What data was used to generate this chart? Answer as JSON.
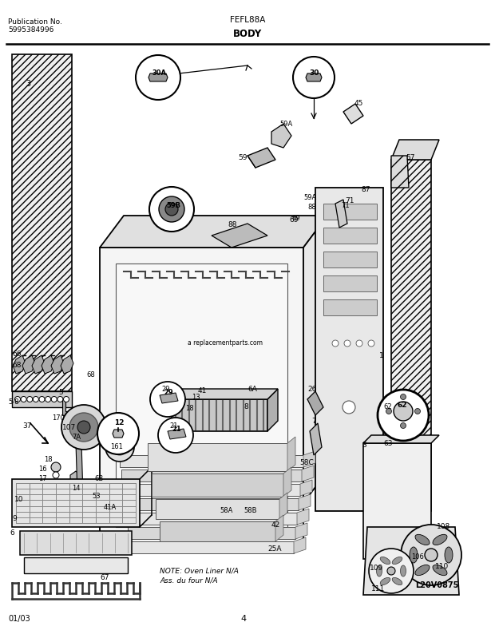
{
  "title": "FEFL88A",
  "subtitle": "BODY",
  "pub_no_label": "Publication No.",
  "pub_no": "5995384996",
  "page_num": "4",
  "date": "01/03",
  "note_line1": "NOTE: Oven Liner N/A",
  "note_line2": "Ass. du four N/A",
  "watermark": "L20V0875",
  "bg_color": "#ffffff",
  "fig_width": 6.2,
  "fig_height": 7.94,
  "fig_dpi": 100
}
